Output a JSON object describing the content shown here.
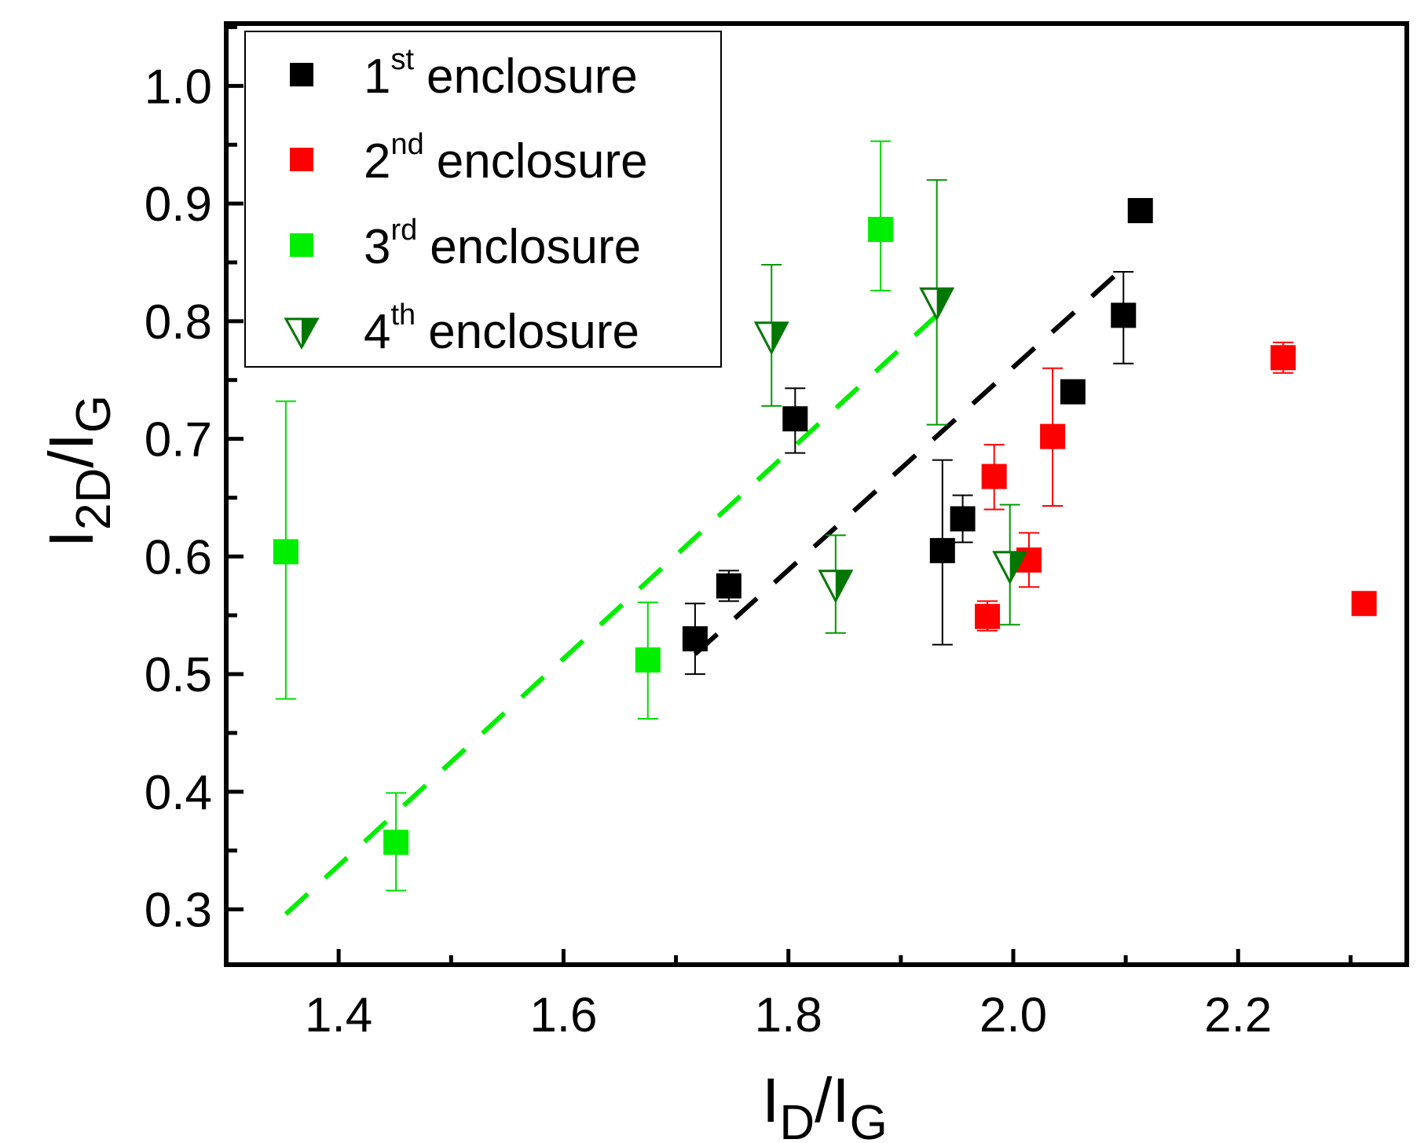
{
  "chart_data": {
    "type": "scatter",
    "xlabel": {
      "main": "I",
      "sub1": "D",
      "sep": "/I",
      "sub2": "G"
    },
    "ylabel": {
      "main": "I",
      "sub1": "2D",
      "sep": "/I",
      "sub2": "G"
    },
    "xlim": [
      1.3,
      2.35
    ],
    "ylim": [
      0.253,
      1.053
    ],
    "x_ticks": [
      "1.4",
      "1.6",
      "1.8",
      "2.0",
      "2.2"
    ],
    "y_ticks": [
      "0.3",
      "0.4",
      "0.5",
      "0.6",
      "0.7",
      "0.8",
      "0.9",
      "1.0"
    ],
    "legend": {
      "position": "top-left",
      "entries": [
        {
          "num": "1",
          "sup": "st",
          "text": "enclosure"
        },
        {
          "num": "2",
          "sup": "nd",
          "text": "enclosure"
        },
        {
          "num": "3",
          "sup": "rd",
          "text": "enclosure"
        },
        {
          "num": "4",
          "sup": "th",
          "text": "enclosure"
        }
      ]
    },
    "series": [
      {
        "name": "1st enclosure",
        "marker": "square",
        "color": "#000000",
        "points": [
          {
            "x": 1.717,
            "y": 0.53,
            "lo": 0.5,
            "hi": 0.56
          },
          {
            "x": 1.747,
            "y": 0.575,
            "lo": 0.562,
            "hi": 0.588
          },
          {
            "x": 1.806,
            "y": 0.717,
            "lo": 0.688,
            "hi": 0.743
          },
          {
            "x": 1.937,
            "y": 0.605,
            "lo": 0.525,
            "hi": 0.682
          },
          {
            "x": 1.955,
            "y": 0.632,
            "lo": 0.612,
            "hi": 0.652
          },
          {
            "x": 2.053,
            "y": 0.74,
            "lo": null,
            "hi": null
          },
          {
            "x": 2.098,
            "y": 0.805,
            "lo": 0.764,
            "hi": 0.842
          },
          {
            "x": 2.113,
            "y": 0.894,
            "lo": null,
            "hi": null
          }
        ]
      },
      {
        "name": "2nd enclosure",
        "marker": "square",
        "color": "#ff0000",
        "points": [
          {
            "x": 1.977,
            "y": 0.549,
            "lo": 0.537,
            "hi": 0.562
          },
          {
            "x": 1.983,
            "y": 0.668,
            "lo": 0.64,
            "hi": 0.695
          },
          {
            "x": 2.014,
            "y": 0.597,
            "lo": 0.574,
            "hi": 0.62
          },
          {
            "x": 2.035,
            "y": 0.702,
            "lo": 0.643,
            "hi": 0.76
          },
          {
            "x": 2.24,
            "y": 0.769,
            "lo": 0.756,
            "hi": 0.782
          },
          {
            "x": 2.312,
            "y": 0.56,
            "lo": 0.555,
            "hi": 0.565
          }
        ]
      },
      {
        "name": "3rd enclosure",
        "marker": "square",
        "color": "#00ee00",
        "points": [
          {
            "x": 1.353,
            "y": 0.604,
            "lo": 0.479,
            "hi": 0.732
          },
          {
            "x": 1.451,
            "y": 0.357,
            "lo": 0.316,
            "hi": 0.399
          },
          {
            "x": 1.675,
            "y": 0.512,
            "lo": 0.462,
            "hi": 0.561
          },
          {
            "x": 1.882,
            "y": 0.878,
            "lo": 0.826,
            "hi": 0.953
          }
        ]
      },
      {
        "name": "4th enclosure",
        "marker": "half-triangle-down",
        "color": "#007700",
        "points": [
          {
            "x": 1.785,
            "y": 0.788,
            "lo": 0.728,
            "hi": 0.848
          },
          {
            "x": 1.842,
            "y": 0.577,
            "lo": 0.535,
            "hi": 0.618
          },
          {
            "x": 1.932,
            "y": 0.817,
            "lo": 0.712,
            "hi": 0.92
          },
          {
            "x": 1.997,
            "y": 0.593,
            "lo": 0.542,
            "hi": 0.644
          }
        ]
      }
    ],
    "fit_lines": [
      {
        "name": "fit-3rd-enclosure",
        "color": "#00ee00",
        "x": [
          1.353,
          1.932
        ],
        "y": [
          0.296,
          0.805
        ]
      },
      {
        "name": "fit-1st-enclosure",
        "color": "#000000",
        "x": [
          1.717,
          2.1
        ],
        "y": [
          0.517,
          0.847
        ]
      }
    ]
  }
}
